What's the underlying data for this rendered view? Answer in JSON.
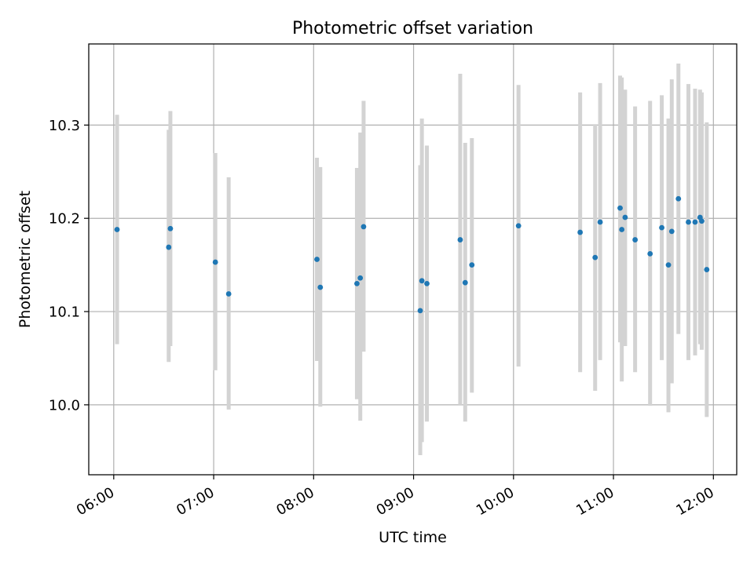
{
  "chart_data": {
    "type": "scatter",
    "title": "Photometric offset variation",
    "xlabel": "UTC time",
    "ylabel": "Photometric offset",
    "x_tick_labels": [
      "06:00",
      "07:00",
      "08:00",
      "09:00",
      "10:00",
      "11:00",
      "12:00"
    ],
    "x_ticks": [
      "06:00",
      "07:00",
      "08:00",
      "09:00",
      "10:00",
      "11:00",
      "12:00"
    ],
    "y_tick_labels": [
      "10.0",
      "10.1",
      "10.2",
      "10.3"
    ],
    "y_ticks": [
      10.0,
      10.1,
      10.2,
      10.3
    ],
    "xlim": [
      "05:45",
      "12:14"
    ],
    "ylim": [
      9.925,
      10.387
    ],
    "grid": true,
    "colors": {
      "points": "#1f77b4",
      "error_bars": "#d3d3d3",
      "grid": "#b0b0b0"
    },
    "points": [
      {
        "x": "06:02",
        "y": 10.188,
        "y_low": 10.065,
        "y_high": 10.311
      },
      {
        "x": "06:33",
        "y": 10.169,
        "y_low": 10.046,
        "y_high": 10.295
      },
      {
        "x": "06:34",
        "y": 10.189,
        "y_low": 10.063,
        "y_high": 10.315
      },
      {
        "x": "07:01",
        "y": 10.153,
        "y_low": 10.037,
        "y_high": 10.27
      },
      {
        "x": "07:09",
        "y": 10.119,
        "y_low": 9.995,
        "y_high": 10.244
      },
      {
        "x": "08:02",
        "y": 10.156,
        "y_low": 10.047,
        "y_high": 10.265
      },
      {
        "x": "08:04",
        "y": 10.126,
        "y_low": 9.998,
        "y_high": 10.255
      },
      {
        "x": "08:26",
        "y": 10.13,
        "y_low": 10.006,
        "y_high": 10.254
      },
      {
        "x": "08:28",
        "y": 10.136,
        "y_low": 9.983,
        "y_high": 10.292
      },
      {
        "x": "08:30",
        "y": 10.191,
        "y_low": 10.057,
        "y_high": 10.326
      },
      {
        "x": "09:04",
        "y": 10.101,
        "y_low": 9.946,
        "y_high": 10.257
      },
      {
        "x": "09:05",
        "y": 10.133,
        "y_low": 9.96,
        "y_high": 10.307
      },
      {
        "x": "09:08",
        "y": 10.13,
        "y_low": 9.982,
        "y_high": 10.278
      },
      {
        "x": "09:28",
        "y": 10.177,
        "y_low": 10.0,
        "y_high": 10.355
      },
      {
        "x": "09:31",
        "y": 10.131,
        "y_low": 9.982,
        "y_high": 10.281
      },
      {
        "x": "09:35",
        "y": 10.15,
        "y_low": 10.013,
        "y_high": 10.286
      },
      {
        "x": "10:03",
        "y": 10.192,
        "y_low": 10.041,
        "y_high": 10.343
      },
      {
        "x": "10:40",
        "y": 10.185,
        "y_low": 10.035,
        "y_high": 10.335
      },
      {
        "x": "10:49",
        "y": 10.158,
        "y_low": 10.015,
        "y_high": 10.301
      },
      {
        "x": "10:52",
        "y": 10.196,
        "y_low": 10.048,
        "y_high": 10.345
      },
      {
        "x": "11:04",
        "y": 10.211,
        "y_low": 10.067,
        "y_high": 10.353
      },
      {
        "x": "11:05",
        "y": 10.188,
        "y_low": 10.025,
        "y_high": 10.351
      },
      {
        "x": "11:07",
        "y": 10.201,
        "y_low": 10.063,
        "y_high": 10.338
      },
      {
        "x": "11:13",
        "y": 10.177,
        "y_low": 10.035,
        "y_high": 10.32
      },
      {
        "x": "11:22",
        "y": 10.162,
        "y_low": 9.999,
        "y_high": 10.326
      },
      {
        "x": "11:29",
        "y": 10.19,
        "y_low": 10.048,
        "y_high": 10.332
      },
      {
        "x": "11:33",
        "y": 10.15,
        "y_low": 9.992,
        "y_high": 10.307
      },
      {
        "x": "11:35",
        "y": 10.186,
        "y_low": 10.023,
        "y_high": 10.349
      },
      {
        "x": "11:39",
        "y": 10.221,
        "y_low": 10.076,
        "y_high": 10.366
      },
      {
        "x": "11:45",
        "y": 10.196,
        "y_low": 10.048,
        "y_high": 10.344
      },
      {
        "x": "11:49",
        "y": 10.196,
        "y_low": 10.053,
        "y_high": 10.339
      },
      {
        "x": "11:52",
        "y": 10.201,
        "y_low": 10.065,
        "y_high": 10.338
      },
      {
        "x": "11:53",
        "y": 10.197,
        "y_low": 10.059,
        "y_high": 10.335
      },
      {
        "x": "11:56",
        "y": 10.145,
        "y_low": 9.987,
        "y_high": 10.303
      }
    ]
  }
}
